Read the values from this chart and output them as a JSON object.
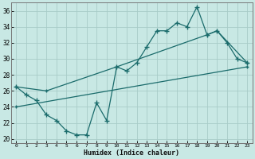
{
  "background_color": "#c8e8e4",
  "grid_color": "#a8ccc8",
  "line_color": "#1a6b6b",
  "xlim": [
    -0.5,
    23.5
  ],
  "ylim": [
    19.5,
    37.0
  ],
  "yticks": [
    20,
    22,
    24,
    26,
    28,
    30,
    32,
    34,
    36
  ],
  "xticks": [
    0,
    1,
    2,
    3,
    4,
    5,
    6,
    7,
    8,
    9,
    10,
    11,
    12,
    13,
    14,
    15,
    16,
    17,
    18,
    19,
    20,
    21,
    22,
    23
  ],
  "xlabel": "Humidex (Indice chaleur)",
  "line1_x": [
    0,
    1,
    2,
    3,
    4,
    5,
    6,
    7,
    8,
    9,
    10,
    11,
    12,
    13,
    14,
    15,
    16,
    17,
    18,
    19,
    20,
    21,
    22,
    23
  ],
  "line1_y": [
    26.5,
    25.5,
    24.8,
    23.0,
    22.3,
    21.0,
    20.5,
    20.5,
    24.5,
    22.3,
    29.0,
    28.5,
    29.5,
    31.5,
    33.5,
    33.5,
    34.5,
    34.0,
    36.5,
    33.0,
    33.5,
    32.0,
    30.0,
    29.5
  ],
  "line2_x": [
    0,
    3,
    10,
    19,
    20,
    23
  ],
  "line2_y": [
    26.5,
    26.0,
    29.0,
    33.0,
    33.5,
    29.5
  ],
  "line3_x": [
    0,
    23
  ],
  "line3_y": [
    24.0,
    29.0
  ]
}
